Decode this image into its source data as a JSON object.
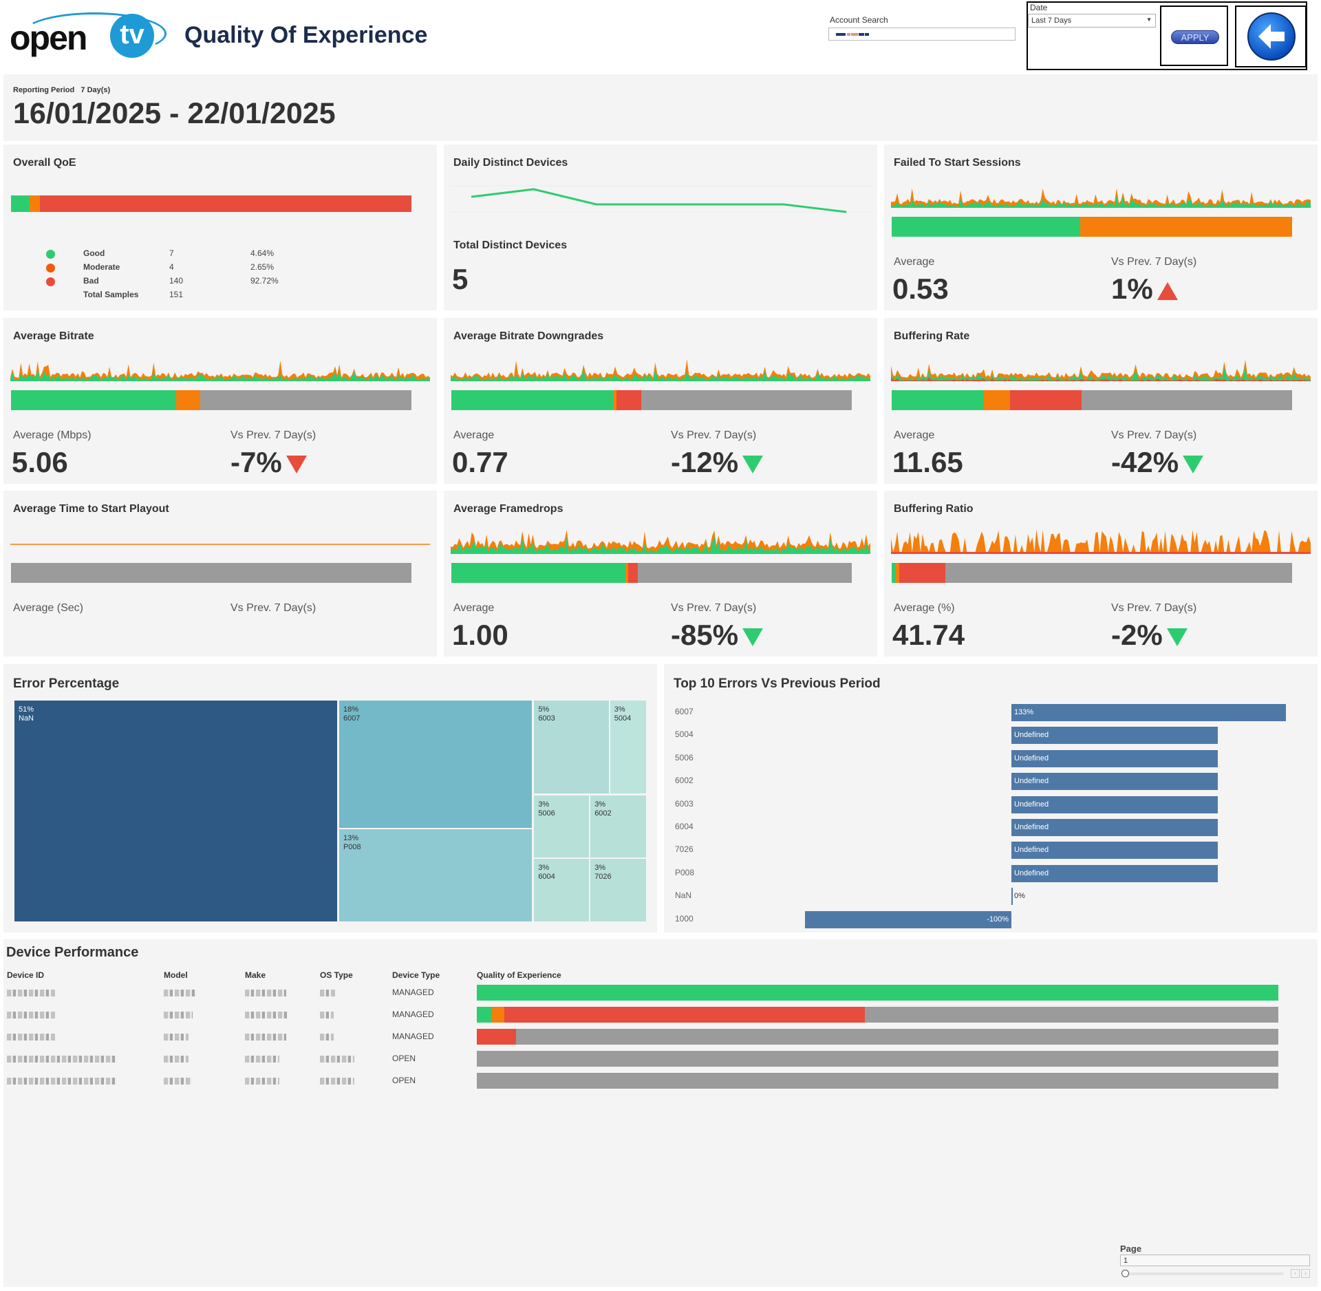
{
  "header": {
    "logo": {
      "open": "open",
      "tv": "tv"
    },
    "title": "Quality Of Experience",
    "account_search": {
      "label": "Account Search",
      "value_redacted": true
    },
    "date": {
      "label": "Date",
      "selected": "Last 7 Days"
    },
    "apply_label": "APPLY",
    "back_icon": "arrow-left-icon"
  },
  "period": {
    "label": "Reporting Period",
    "days": "7 Day(s)",
    "range": "16/01/2025 - 22/01/2025"
  },
  "colors": {
    "good": "#2ecc71",
    "moderate": "#f57f0a",
    "bad": "#e74c3c",
    "none": "#9b9b9b",
    "treemap_dark": "#2e5984",
    "bar_blue": "#4e79a7"
  },
  "overall_qoe": {
    "title": "Overall QoE",
    "legend": [
      {
        "label": "Good",
        "count": "7",
        "pct": "4.64%",
        "color": "#2ecc71",
        "fraction": 0.0464
      },
      {
        "label": "Moderate",
        "count": "4",
        "pct": "2.65%",
        "color": "#f55a0a",
        "fraction": 0.0265
      },
      {
        "label": "Bad",
        "count": "140",
        "pct": "92.72%",
        "color": "#e74c3c",
        "fraction": 0.9272
      }
    ],
    "total_label": "Total Samples",
    "total": "151"
  },
  "daily_devices": {
    "title": "Daily Distinct Devices",
    "trend": [
      4,
      5,
      3,
      3,
      3,
      3,
      2
    ],
    "total_label": "Total Distinct Devices",
    "total": "5"
  },
  "metrics": [
    {
      "title": "Failed To Start Sessions",
      "avg_label": "Average",
      "avg": "0.53",
      "vs_label": "Vs Prev. 7 Day(s)",
      "vs": "1%",
      "trend": "up-red",
      "split": [
        0.471,
        0.529,
        0
      ],
      "spark": "mix"
    },
    {
      "title": "Average Bitrate",
      "avg_label": "Average (Mbps)",
      "avg": "5.06",
      "vs_label": "Vs Prev. 7 Day(s)",
      "vs": "-7%",
      "trend": "down-red",
      "split": [
        0.413,
        0.059,
        0
      ],
      "spark": "mix"
    },
    {
      "title": "Average Bitrate Downgrades",
      "avg_label": "Average",
      "avg": "0.77",
      "vs_label": "Vs Prev. 7 Day(s)",
      "vs": "-12%",
      "trend": "down-green",
      "split": [
        0.403,
        0.01,
        0.062
      ],
      "spark": "mix"
    },
    {
      "title": "Buffering Rate",
      "avg_label": "Average",
      "avg": "11.65",
      "vs_label": "Vs Prev. 7 Day(s)",
      "vs": "-42%",
      "trend": "down-green",
      "split": [
        0.231,
        0.064,
        0.18
      ],
      "spark": "mixred"
    },
    {
      "title": "Average Time to Start Playout",
      "avg_label": "Average (Sec)",
      "avg": "",
      "vs_label": "Vs Prev. 7 Day(s)",
      "vs": "",
      "trend": "",
      "split": [
        0,
        0,
        0
      ],
      "spark": "flat"
    },
    {
      "title": "Average Framedrops",
      "avg_label": "Average",
      "avg": "1.00",
      "vs_label": "Vs Prev. 7 Day(s)",
      "vs": "-85%",
      "trend": "down-green",
      "split": [
        0.435,
        0.006,
        0.025
      ],
      "spark": "dense"
    },
    {
      "title": "Buffering Ratio",
      "avg_label": "Average (%)",
      "avg": "41.74",
      "vs_label": "Vs Prev. 7 Day(s)",
      "vs": "-2%",
      "trend": "down-green",
      "split": [
        0.011,
        0.008,
        0.115
      ],
      "spark": "bars"
    }
  ],
  "error_percentage": {
    "title": "Error Percentage",
    "cells": [
      {
        "pct": "51%",
        "code": "NaN",
        "color": "#2e5984"
      },
      {
        "pct": "18%",
        "code": "6007",
        "color": "#73b9c7"
      },
      {
        "pct": "13%",
        "code": "P008",
        "color": "#8ec8d0"
      },
      {
        "pct": "5%",
        "code": "6003",
        "color": "#b0dbd6"
      },
      {
        "pct": "3%",
        "code": "5004",
        "color": "#bce4dc"
      },
      {
        "pct": "3%",
        "code": "5006",
        "color": "#b6e0d8"
      },
      {
        "pct": "3%",
        "code": "6002",
        "color": "#b6e0d8"
      },
      {
        "pct": "3%",
        "code": "6004",
        "color": "#b6e0d8"
      },
      {
        "pct": "3%",
        "code": "7026",
        "color": "#b6e0d8"
      }
    ]
  },
  "chart_data": {
    "type": "bar",
    "title": "Top 10 Errors Vs Previous Period",
    "orientation": "horizontal",
    "categories": [
      "6007",
      "5004",
      "5006",
      "6002",
      "6003",
      "6004",
      "7026",
      "P008",
      "NaN",
      "1000"
    ],
    "values": [
      133,
      null,
      null,
      null,
      null,
      null,
      null,
      null,
      0,
      -100
    ],
    "labels": [
      "133%",
      "Undefined",
      "Undefined",
      "Undefined",
      "Undefined",
      "Undefined",
      "Undefined",
      "Undefined",
      "0%",
      "-100%"
    ],
    "unit": "%",
    "color": "#4e79a7"
  },
  "device_performance": {
    "title": "Device Performance",
    "columns": [
      "Device ID",
      "Model",
      "Make",
      "OS Type",
      "Device Type",
      "Quality of Experience"
    ],
    "rows": [
      {
        "device_type": "MANAGED",
        "qoe": [
          1,
          0,
          0
        ]
      },
      {
        "device_type": "MANAGED",
        "qoe": [
          0.019,
          0.015,
          0.45
        ]
      },
      {
        "device_type": "MANAGED",
        "qoe": [
          0,
          0,
          0.049
        ]
      },
      {
        "device_type": "OPEN",
        "qoe": [
          0,
          0,
          0
        ]
      },
      {
        "device_type": "OPEN",
        "qoe": [
          0,
          0,
          0
        ]
      }
    ]
  },
  "pager": {
    "label": "Page",
    "value": "1"
  }
}
